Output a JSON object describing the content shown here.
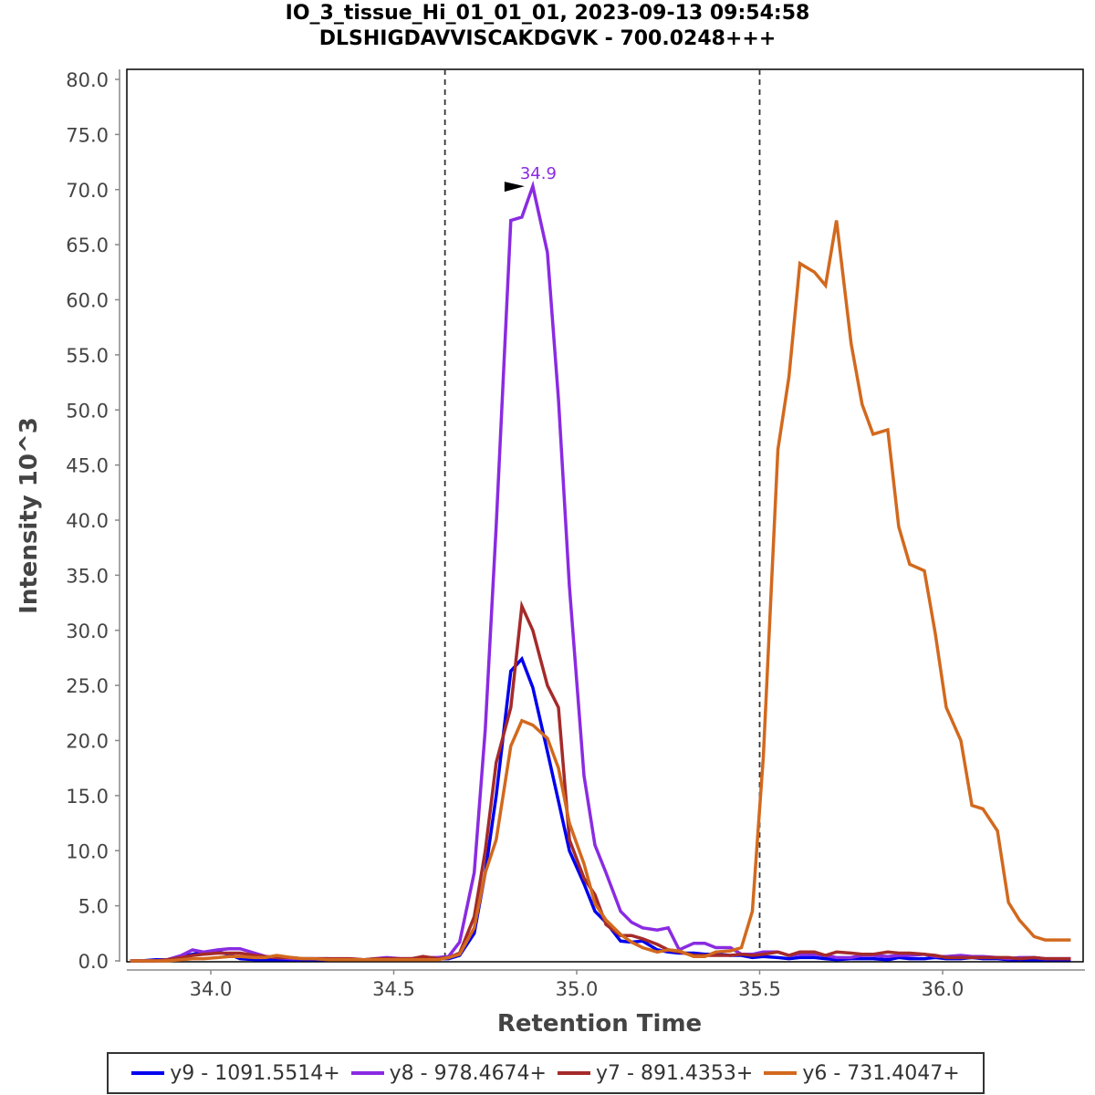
{
  "chart_data": {
    "type": "line",
    "title": "IO_3_tissue_Hi_01_01_01, 2023-09-13 09:54:58",
    "subtitle": "DLSHIGDAVVISCAKDGVK - 700.0248+++",
    "xlabel": "Retention Time",
    "ylabel": "Intensity 10^3",
    "xlim": [
      33.77,
      36.38
    ],
    "ylim": [
      0,
      80
    ],
    "x_ticks": [
      "34.0",
      "34.5",
      "35.0",
      "35.5",
      "36.0"
    ],
    "y_ticks": [
      "0.0",
      "5.0",
      "10.0",
      "15.0",
      "20.0",
      "25.0",
      "30.0",
      "35.0",
      "40.0",
      "45.0",
      "50.0",
      "55.0",
      "60.0",
      "65.0",
      "70.0",
      "75.0",
      "80.0"
    ],
    "grid": false,
    "legend_position": "bottom",
    "boundaries": [
      34.64,
      35.5
    ],
    "annotation": {
      "text": "34.9",
      "x": 34.87,
      "y": 70.3,
      "series": "y8 - 978.4674+"
    },
    "x": [
      33.78,
      33.81,
      33.85,
      33.88,
      33.92,
      33.95,
      33.98,
      34.02,
      34.05,
      34.08,
      34.12,
      34.15,
      34.18,
      34.22,
      34.25,
      34.28,
      34.32,
      34.35,
      34.38,
      34.42,
      34.45,
      34.48,
      34.52,
      34.55,
      34.58,
      34.62,
      34.65,
      34.68,
      34.72,
      34.75,
      34.78,
      34.82,
      34.85,
      34.88,
      34.92,
      34.95,
      34.98,
      35.02,
      35.05,
      35.08,
      35.12,
      35.15,
      35.18,
      35.22,
      35.25,
      35.28,
      35.32,
      35.35,
      35.38,
      35.42,
      35.45,
      35.48,
      35.51,
      35.55,
      35.58,
      35.61,
      35.65,
      35.68,
      35.71,
      35.75,
      35.78,
      35.81,
      35.85,
      35.88,
      35.91,
      35.95,
      35.98,
      36.01,
      36.05,
      36.08,
      36.11,
      36.15,
      36.18,
      36.21,
      36.25,
      36.28,
      36.31,
      36.35
    ],
    "series": [
      {
        "name": "y9 - 1091.5514+",
        "color": "#0000ee",
        "values": [
          0.0,
          0.0,
          0.1,
          0.1,
          0.4,
          0.6,
          0.8,
          0.8,
          0.6,
          0.2,
          0.1,
          0.1,
          0.1,
          0.1,
          0.1,
          0.1,
          0.1,
          0.1,
          0.1,
          0.1,
          0.1,
          0.1,
          0.1,
          0.1,
          0.1,
          0.2,
          0.2,
          0.5,
          2.5,
          8.0,
          15.0,
          26.3,
          27.4,
          24.8,
          19.0,
          14.5,
          10.0,
          7.0,
          4.5,
          3.5,
          1.8,
          1.7,
          1.8,
          1.0,
          0.8,
          0.7,
          0.7,
          0.6,
          0.6,
          0.5,
          0.5,
          0.3,
          0.4,
          0.3,
          0.2,
          0.3,
          0.3,
          0.2,
          0.1,
          0.2,
          0.2,
          0.2,
          0.1,
          0.3,
          0.2,
          0.2,
          0.3,
          0.2,
          0.2,
          0.3,
          0.2,
          0.2,
          0.1,
          0.1,
          0.1,
          0.1,
          0.1,
          0.1
        ]
      },
      {
        "name": "y8 - 978.4674+",
        "color": "#8a2be2",
        "values": [
          0.0,
          0.0,
          0.0,
          0.1,
          0.5,
          1.0,
          0.8,
          1.0,
          1.1,
          1.1,
          0.7,
          0.4,
          0.3,
          0.2,
          0.2,
          0.2,
          0.2,
          0.1,
          0.1,
          0.1,
          0.2,
          0.3,
          0.2,
          0.2,
          0.3,
          0.3,
          0.4,
          1.7,
          8.0,
          21.0,
          39.5,
          67.2,
          67.5,
          70.3,
          64.3,
          51.0,
          34.0,
          16.8,
          10.5,
          8.0,
          4.5,
          3.5,
          3.0,
          2.8,
          3.0,
          1.0,
          1.6,
          1.6,
          1.2,
          1.2,
          0.6,
          0.6,
          0.8,
          0.8,
          0.5,
          0.6,
          0.6,
          0.5,
          0.3,
          0.3,
          0.5,
          0.5,
          0.4,
          0.5,
          0.5,
          0.6,
          0.4,
          0.4,
          0.5,
          0.4,
          0.4,
          0.3,
          0.2,
          0.3,
          0.3,
          0.2,
          0.2,
          0.2
        ]
      },
      {
        "name": "y7 - 891.4353+",
        "color": "#a52a2a",
        "values": [
          0.0,
          0.0,
          0.0,
          0.1,
          0.3,
          0.5,
          0.6,
          0.7,
          0.7,
          0.7,
          0.5,
          0.4,
          0.3,
          0.3,
          0.2,
          0.2,
          0.2,
          0.2,
          0.2,
          0.1,
          0.2,
          0.2,
          0.2,
          0.2,
          0.4,
          0.2,
          0.3,
          0.7,
          4.0,
          10.0,
          18.0,
          23.0,
          32.2,
          30.0,
          25.0,
          23.0,
          11.0,
          7.5,
          6.0,
          3.3,
          2.3,
          2.3,
          2.0,
          1.5,
          1.0,
          0.8,
          0.5,
          0.5,
          0.5,
          0.5,
          0.6,
          0.5,
          0.6,
          0.8,
          0.5,
          0.8,
          0.8,
          0.5,
          0.8,
          0.7,
          0.6,
          0.6,
          0.8,
          0.7,
          0.7,
          0.6,
          0.5,
          0.3,
          0.3,
          0.3,
          0.3,
          0.3,
          0.3,
          0.2,
          0.3,
          0.2,
          0.2,
          0.2
        ]
      },
      {
        "name": "y6 - 731.4047+",
        "color": "#d2691e",
        "values": [
          0.0,
          0.0,
          0.0,
          0.0,
          0.1,
          0.2,
          0.2,
          0.3,
          0.4,
          0.4,
          0.3,
          0.3,
          0.5,
          0.3,
          0.2,
          0.2,
          0.1,
          0.1,
          0.1,
          0.1,
          0.1,
          0.1,
          0.1,
          0.1,
          0.1,
          0.1,
          0.3,
          0.6,
          3.0,
          8.0,
          11.0,
          19.5,
          21.8,
          21.4,
          20.2,
          17.5,
          12.5,
          8.8,
          5.2,
          3.7,
          2.4,
          1.7,
          1.2,
          0.8,
          1.0,
          0.9,
          0.4,
          0.4,
          0.8,
          0.9,
          1.2,
          4.5,
          18.5,
          46.4,
          53.0,
          63.3,
          62.5,
          61.3,
          67.2,
          56.0,
          50.5,
          47.8,
          48.2,
          39.4,
          36.0,
          35.4,
          29.7,
          23.0,
          20.0,
          14.1,
          13.8,
          11.8,
          5.3,
          3.7,
          2.2,
          1.9,
          1.9,
          1.9
        ]
      }
    ]
  }
}
